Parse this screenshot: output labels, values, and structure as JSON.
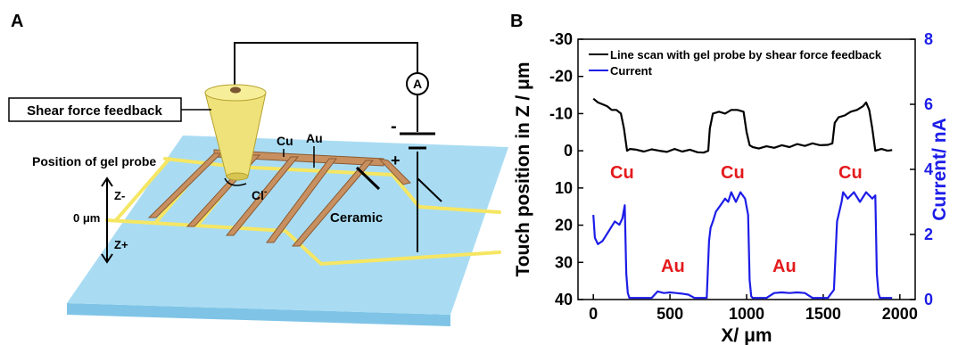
{
  "panel_a": {
    "letter": "A",
    "labels": {
      "shear": "Shear force feedback",
      "cu": "Cu",
      "au": "Au",
      "position": "Position of gel probe",
      "zminus": "Z-",
      "zero": "0 μm",
      "zplus": "Z+",
      "ceramic": "Ceramic",
      "ammeter": "A",
      "minus": "-",
      "plus": "+",
      "cl": "Cl",
      "cl_sup": "-"
    },
    "colors": {
      "substrate": "#a9dcf3",
      "substrate_side": "#7fc4e6",
      "gold_line": "#f5e663",
      "copper": "#c89060",
      "copper_dark": "#8c5a30",
      "probe": "#efe27a",
      "probe_dark": "#b5a22e"
    }
  },
  "panel_b": {
    "letter": "B"
  },
  "chart_data": {
    "type": "line",
    "xlabel": "X/ μm",
    "ylabel_left": "Touch position in Z / μm",
    "ylabel_right": "Current/ nA",
    "xlim": [
      -100,
      2100
    ],
    "ylim_left": [
      40,
      -30
    ],
    "ylim_right": [
      0,
      8
    ],
    "x_ticks": [
      0,
      500,
      1000,
      1500,
      2000
    ],
    "y_left_ticks": [
      -30,
      -20,
      -10,
      0,
      10,
      20,
      30,
      40
    ],
    "y_right_ticks": [
      0,
      2,
      4,
      6,
      8
    ],
    "legend_position": "top",
    "series": [
      {
        "name": "Line scan with gel probe by shear force feedback",
        "axis": "left",
        "color": "#000000",
        "x": [
          0,
          30,
          60,
          90,
          120,
          150,
          180,
          200,
          220,
          240,
          280,
          330,
          380,
          430,
          480,
          530,
          580,
          630,
          680,
          720,
          750,
          760,
          780,
          820,
          860,
          900,
          940,
          980,
          1000,
          1020,
          1040,
          1080,
          1130,
          1180,
          1230,
          1280,
          1330,
          1380,
          1430,
          1480,
          1530,
          1560,
          1575,
          1600,
          1640,
          1680,
          1720,
          1760,
          1780,
          1800,
          1820,
          1840,
          1880,
          1920,
          1950
        ],
        "y": [
          -14,
          -13,
          -12.5,
          -12,
          -11,
          -11,
          -10,
          -6,
          0,
          -0.5,
          -0.3,
          0.2,
          -0.4,
          0,
          0.3,
          -0.5,
          0.2,
          -0.3,
          0.4,
          0.5,
          0,
          -6,
          -10,
          -10.5,
          -10,
          -11,
          -11,
          -10.5,
          -5,
          -1.5,
          -1,
          -0.6,
          -1.2,
          -0.8,
          -1.5,
          -1,
          -1.8,
          -1.3,
          -2,
          -1.5,
          -1.6,
          -2,
          -7.5,
          -9,
          -9.5,
          -10.5,
          -11,
          -12,
          -13,
          -11,
          -6,
          0,
          -0.5,
          0,
          -0.2
        ]
      },
      {
        "name": "Current",
        "axis": "right",
        "color": "#1d1de8",
        "x": [
          0,
          10,
          30,
          60,
          100,
          140,
          170,
          190,
          205,
          215,
          225,
          235,
          260,
          300,
          340,
          380,
          420,
          460,
          500,
          540,
          580,
          620,
          660,
          700,
          740,
          755,
          765,
          780,
          800,
          830,
          860,
          880,
          900,
          930,
          960,
          990,
          1010,
          1020,
          1030,
          1040,
          1080,
          1130,
          1180,
          1230,
          1280,
          1330,
          1380,
          1430,
          1480,
          1530,
          1570,
          1590,
          1610,
          1620,
          1630,
          1660,
          1700,
          1740,
          1780,
          1820,
          1840,
          1850,
          1860,
          1870,
          1880,
          1920,
          1950
        ],
        "y": [
          2.6,
          1.9,
          1.7,
          1.8,
          2.1,
          2.4,
          2.3,
          2.5,
          2.9,
          0.8,
          0.2,
          0.05,
          0.05,
          0.05,
          0.05,
          0.05,
          0.25,
          0.2,
          0.22,
          0.2,
          0.18,
          0.15,
          0.05,
          0.05,
          0.05,
          1.8,
          2.2,
          2.4,
          2.7,
          2.9,
          3.1,
          3.0,
          3.3,
          3.0,
          3.3,
          3.1,
          2.6,
          0.6,
          0.1,
          0.05,
          0.05,
          0.05,
          0.2,
          0.22,
          0.2,
          0.22,
          0.2,
          0.05,
          0.05,
          0.05,
          0.3,
          2.4,
          2.8,
          3.0,
          3.3,
          3.1,
          3.3,
          3.0,
          3.3,
          3.1,
          3.2,
          0.8,
          0.2,
          0.05,
          0.05,
          0.05,
          0.05
        ]
      }
    ],
    "annotations": [
      "Cu",
      "Cu",
      "Cu",
      "Au",
      "Au"
    ]
  }
}
